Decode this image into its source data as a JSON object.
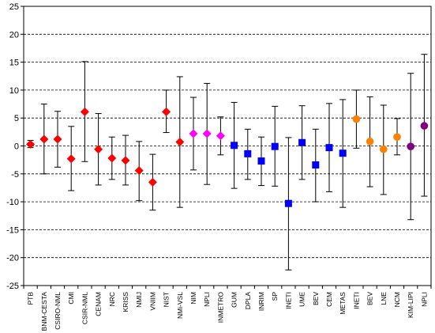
{
  "chart_data": {
    "type": "scatter",
    "title": "",
    "xlabel": "",
    "ylabel": "",
    "ylim": [
      -25,
      25
    ],
    "y_ticks": [
      -25,
      -20,
      -15,
      -10,
      -5,
      0,
      5,
      10,
      15,
      20,
      25
    ],
    "y_tick_labels": [
      "-25",
      "-20",
      "-15",
      "-10",
      "-5",
      "0",
      "5",
      "10",
      "15",
      "20",
      "25"
    ],
    "grid": "horizontal dashed",
    "legend": "none",
    "error_bars": true,
    "categories": [
      "PTB",
      "BNM-CESTA",
      "CSIRO-NML",
      "CMI",
      "CSIR-NML",
      "CENAM",
      "NRC",
      "KRISS",
      "NMIJ",
      "VNIIM",
      "NIST",
      "NMi-VSL",
      "NIM",
      "NPLI",
      "INMETRO",
      "GUM",
      "DPLA",
      "INRIM",
      "SP",
      "INETI",
      "UME",
      "BEV",
      "CEM",
      "METAS",
      "INETI",
      "BEV",
      "LNE",
      "NCM",
      "KIM-LIPI",
      "NPLI"
    ],
    "points": [
      {
        "label": "PTB",
        "y": 0.3,
        "low": -0.3,
        "high": 1.0,
        "marker": "diamond",
        "color": "#ff0000"
      },
      {
        "label": "BNM-CESTA",
        "y": 1.2,
        "low": -5.0,
        "high": 7.5,
        "marker": "diamond",
        "color": "#ff0000"
      },
      {
        "label": "CSIRO-NML",
        "y": 1.2,
        "low": -3.8,
        "high": 6.2,
        "marker": "diamond",
        "color": "#ff0000"
      },
      {
        "label": "CMI",
        "y": -2.3,
        "low": -8.0,
        "high": 3.5,
        "marker": "diamond",
        "color": "#ff0000"
      },
      {
        "label": "CSIR-NML",
        "y": 6.1,
        "low": -2.8,
        "high": 15.1,
        "marker": "diamond",
        "color": "#ff0000"
      },
      {
        "label": "CENAM",
        "y": -0.6,
        "low": -7.0,
        "high": 5.8,
        "marker": "diamond",
        "color": "#ff0000"
      },
      {
        "label": "NRC",
        "y": -2.2,
        "low": -6.0,
        "high": 1.6,
        "marker": "diamond",
        "color": "#ff0000"
      },
      {
        "label": "KRISS",
        "y": -2.6,
        "low": -7.0,
        "high": 1.9,
        "marker": "diamond",
        "color": "#ff0000"
      },
      {
        "label": "NMIJ",
        "y": -4.4,
        "low": -9.8,
        "high": 0.8,
        "marker": "diamond",
        "color": "#ff0000"
      },
      {
        "label": "VNIIM",
        "y": -6.5,
        "low": -11.5,
        "high": -1.5,
        "marker": "diamond",
        "color": "#ff0000"
      },
      {
        "label": "NIST",
        "y": 6.1,
        "low": 2.4,
        "high": 10.0,
        "marker": "diamond",
        "color": "#ff0000"
      },
      {
        "label": "NMi-VSL",
        "y": 0.7,
        "low": -11.0,
        "high": 12.4,
        "marker": "diamond",
        "color": "#ff0000"
      },
      {
        "label": "NIM",
        "y": 2.2,
        "low": -4.3,
        "high": 8.7,
        "marker": "diamond",
        "color": "#ff00ff"
      },
      {
        "label": "NPLI",
        "y": 2.2,
        "low": -6.9,
        "high": 11.2,
        "marker": "diamond",
        "color": "#ff00ff"
      },
      {
        "label": "INMETRO",
        "y": 1.8,
        "low": -1.6,
        "high": 5.2,
        "marker": "diamond",
        "color": "#ff00ff"
      },
      {
        "label": "GUM",
        "y": 0.1,
        "low": -7.6,
        "high": 7.8,
        "marker": "square",
        "color": "#0000ff"
      },
      {
        "label": "DPLA",
        "y": -1.4,
        "low": -6.0,
        "high": 3.0,
        "marker": "square",
        "color": "#0000ff"
      },
      {
        "label": "INRIM",
        "y": -2.7,
        "low": -7.1,
        "high": 1.6,
        "marker": "square",
        "color": "#0000ff"
      },
      {
        "label": "SP",
        "y": -0.1,
        "low": -7.2,
        "high": 7.1,
        "marker": "square",
        "color": "#0000ff"
      },
      {
        "label": "INETI",
        "y": -10.3,
        "low": -22.2,
        "high": 1.5,
        "marker": "square",
        "color": "#0000ff"
      },
      {
        "label": "UME",
        "y": 0.6,
        "low": -6.0,
        "high": 7.2,
        "marker": "square",
        "color": "#0000ff"
      },
      {
        "label": "BEV",
        "y": -3.4,
        "low": -10.0,
        "high": 3.0,
        "marker": "square",
        "color": "#0000ff"
      },
      {
        "label": "CEM",
        "y": -0.3,
        "low": -8.2,
        "high": 7.6,
        "marker": "square",
        "color": "#0000ff"
      },
      {
        "label": "METAS",
        "y": -1.3,
        "low": -11.0,
        "high": 8.3,
        "marker": "square",
        "color": "#0000ff"
      },
      {
        "label": "INETI",
        "y": 4.8,
        "low": -0.4,
        "high": 10.0,
        "marker": "circle",
        "color": "#ff8000"
      },
      {
        "label": "BEV",
        "y": 0.8,
        "low": -7.3,
        "high": 8.8,
        "marker": "circle",
        "color": "#ff8000"
      },
      {
        "label": "LNE",
        "y": -0.6,
        "low": -8.7,
        "high": 7.3,
        "marker": "circle",
        "color": "#ff8000"
      },
      {
        "label": "NCM",
        "y": 1.6,
        "low": -1.6,
        "high": 4.9,
        "marker": "circle",
        "color": "#ff8000"
      },
      {
        "label": "KIM-LIPI",
        "y": -0.1,
        "low": -13.2,
        "high": 13.0,
        "marker": "circle",
        "color": "#800080"
      },
      {
        "label": "NPLI",
        "y": 3.6,
        "low": -9.0,
        "high": 16.4,
        "marker": "circle",
        "color": "#800080"
      }
    ],
    "colors": {
      "grid": "#000000",
      "error_bar": "#000000",
      "axis": "#000000"
    }
  }
}
